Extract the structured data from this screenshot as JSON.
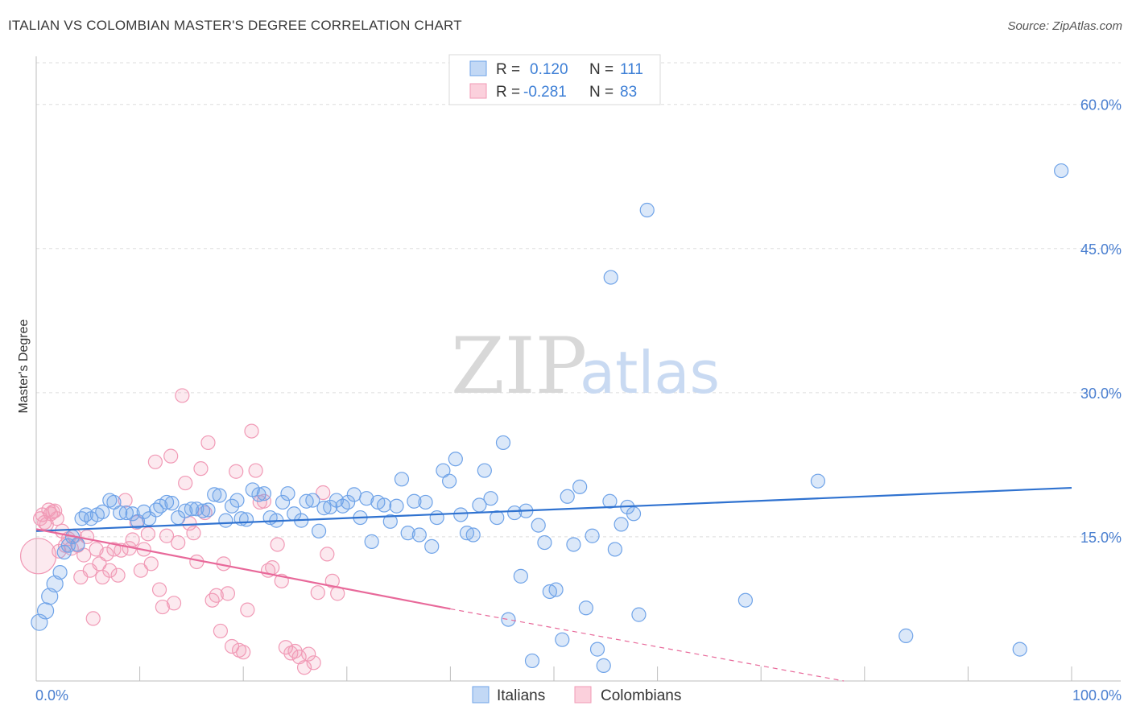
{
  "header": {
    "title": "ITALIAN VS COLOMBIAN MASTER'S DEGREE CORRELATION CHART",
    "source": "Source: ZipAtlas.com"
  },
  "watermark": {
    "zip": "ZIP",
    "atlas": "atlas"
  },
  "stats": [
    {
      "r_label": "R =",
      "r_value": "0.120",
      "n_label": "N =",
      "n_value": "111",
      "color": "#a9c8f0"
    },
    {
      "r_label": "R =",
      "r_value": "-0.281",
      "n_label": "N =",
      "n_value": "83",
      "color": "#f6b8cc"
    }
  ],
  "chart_data": {
    "type": "scatter",
    "title": "ITALIAN VS COLOMBIAN MASTER'S DEGREE CORRELATION CHART",
    "xlabel": "",
    "ylabel": "Master's Degree",
    "xlim": [
      0,
      100
    ],
    "ylim": [
      0,
      65
    ],
    "x_ticks": [
      "0.0%",
      "100.0%"
    ],
    "y_ticks": [
      {
        "value": 15,
        "label": "15.0%"
      },
      {
        "value": 30,
        "label": "30.0%"
      },
      {
        "value": 45,
        "label": "45.0%"
      },
      {
        "value": 60,
        "label": "60.0%"
      }
    ],
    "grid": true,
    "legend_position": "bottom-center",
    "series": [
      {
        "name": "Italians",
        "color": "#6fa3e8",
        "line_color": "#2f72d0",
        "trend": {
          "x": [
            0,
            100
          ],
          "y": [
            15.6,
            20.1
          ]
        },
        "points": [
          [
            0.3,
            6.1
          ],
          [
            0.9,
            7.3
          ],
          [
            1.3,
            8.8
          ],
          [
            1.8,
            10.1
          ],
          [
            2.3,
            11.3
          ],
          [
            2.7,
            13.4
          ],
          [
            3.1,
            14.1
          ],
          [
            3.5,
            15.0
          ],
          [
            4.0,
            14.2
          ],
          [
            4.4,
            16.9
          ],
          [
            4.8,
            17.3
          ],
          [
            5.3,
            16.9
          ],
          [
            5.9,
            17.3
          ],
          [
            6.4,
            17.6
          ],
          [
            7.1,
            18.8
          ],
          [
            7.5,
            18.6
          ],
          [
            8.1,
            17.5
          ],
          [
            8.7,
            17.5
          ],
          [
            9.3,
            17.4
          ],
          [
            9.8,
            16.6
          ],
          [
            10.4,
            17.6
          ],
          [
            10.9,
            16.9
          ],
          [
            11.6,
            17.8
          ],
          [
            12.0,
            18.2
          ],
          [
            12.6,
            18.6
          ],
          [
            13.1,
            18.5
          ],
          [
            13.7,
            17.0
          ],
          [
            14.4,
            17.7
          ],
          [
            15.0,
            17.9
          ],
          [
            15.5,
            17.9
          ],
          [
            16.1,
            17.7
          ],
          [
            16.6,
            17.8
          ],
          [
            17.2,
            19.4
          ],
          [
            17.7,
            19.3
          ],
          [
            18.3,
            16.7
          ],
          [
            18.9,
            18.2
          ],
          [
            19.4,
            18.8
          ],
          [
            19.8,
            16.9
          ],
          [
            20.3,
            16.8
          ],
          [
            20.9,
            19.9
          ],
          [
            21.5,
            19.4
          ],
          [
            22.0,
            19.5
          ],
          [
            22.6,
            17.0
          ],
          [
            23.2,
            16.7
          ],
          [
            23.8,
            18.6
          ],
          [
            24.3,
            19.5
          ],
          [
            24.9,
            17.4
          ],
          [
            25.6,
            16.7
          ],
          [
            26.1,
            18.7
          ],
          [
            26.7,
            18.8
          ],
          [
            27.3,
            15.6
          ],
          [
            27.8,
            18.0
          ],
          [
            28.4,
            18.1
          ],
          [
            29.0,
            18.8
          ],
          [
            29.6,
            18.2
          ],
          [
            30.1,
            18.6
          ],
          [
            30.7,
            19.4
          ],
          [
            31.3,
            17.0
          ],
          [
            31.9,
            19.0
          ],
          [
            32.4,
            14.5
          ],
          [
            33.0,
            18.6
          ],
          [
            33.6,
            18.3
          ],
          [
            34.2,
            16.6
          ],
          [
            34.8,
            18.2
          ],
          [
            35.3,
            21.0
          ],
          [
            35.9,
            15.4
          ],
          [
            36.5,
            18.7
          ],
          [
            37.0,
            15.2
          ],
          [
            37.6,
            18.6
          ],
          [
            38.2,
            14.0
          ],
          [
            38.7,
            17.0
          ],
          [
            39.3,
            21.9
          ],
          [
            39.9,
            20.8
          ],
          [
            40.5,
            23.1
          ],
          [
            41.0,
            17.3
          ],
          [
            41.6,
            15.4
          ],
          [
            42.2,
            15.2
          ],
          [
            42.8,
            18.3
          ],
          [
            43.3,
            21.9
          ],
          [
            43.9,
            19.0
          ],
          [
            44.5,
            17.0
          ],
          [
            45.1,
            24.8
          ],
          [
            45.6,
            6.4
          ],
          [
            46.2,
            17.5
          ],
          [
            46.8,
            10.9
          ],
          [
            47.3,
            17.7
          ],
          [
            47.9,
            2.1
          ],
          [
            48.5,
            16.2
          ],
          [
            49.1,
            14.4
          ],
          [
            49.6,
            9.3
          ],
          [
            50.2,
            9.5
          ],
          [
            50.8,
            4.3
          ],
          [
            51.3,
            19.2
          ],
          [
            51.9,
            14.2
          ],
          [
            52.5,
            20.2
          ],
          [
            53.1,
            7.6
          ],
          [
            53.7,
            15.1
          ],
          [
            54.2,
            3.3
          ],
          [
            54.8,
            1.6
          ],
          [
            55.4,
            18.7
          ],
          [
            55.9,
            13.7
          ],
          [
            56.5,
            16.3
          ],
          [
            57.1,
            18.1
          ],
          [
            57.7,
            17.4
          ],
          [
            58.2,
            6.9
          ],
          [
            55.5,
            42.0
          ],
          [
            59.0,
            49.0
          ],
          [
            68.5,
            8.4
          ],
          [
            75.5,
            20.8
          ],
          [
            84.0,
            4.7
          ],
          [
            95.0,
            3.3
          ],
          [
            99.0,
            53.1
          ]
        ]
      },
      {
        "name": "Colombians",
        "color": "#f19ab6",
        "line_color": "#e8699a",
        "trend": {
          "x": [
            0,
            40
          ],
          "y": [
            15.8,
            7.5
          ]
        },
        "trend_dashed": {
          "x": [
            40,
            78
          ],
          "y": [
            7.5,
            0
          ]
        },
        "points": [
          [
            0.2,
            13.0
          ],
          [
            0.4,
            16.9
          ],
          [
            0.6,
            17.3
          ],
          [
            0.8,
            16.5
          ],
          [
            1.0,
            16.3
          ],
          [
            1.2,
            17.8
          ],
          [
            1.4,
            17.4
          ],
          [
            1.6,
            17.6
          ],
          [
            1.8,
            17.7
          ],
          [
            2.0,
            16.9
          ],
          [
            2.2,
            13.5
          ],
          [
            2.5,
            15.6
          ],
          [
            2.8,
            14.1
          ],
          [
            3.1,
            14.8
          ],
          [
            3.4,
            13.8
          ],
          [
            3.7,
            15.1
          ],
          [
            4.0,
            14.1
          ],
          [
            4.3,
            10.8
          ],
          [
            4.6,
            13.1
          ],
          [
            4.9,
            15.0
          ],
          [
            5.2,
            11.5
          ],
          [
            5.5,
            6.5
          ],
          [
            5.8,
            13.7
          ],
          [
            6.1,
            12.2
          ],
          [
            6.4,
            10.8
          ],
          [
            6.8,
            13.2
          ],
          [
            7.1,
            11.5
          ],
          [
            7.5,
            13.7
          ],
          [
            7.9,
            11.0
          ],
          [
            8.2,
            13.6
          ],
          [
            8.6,
            18.8
          ],
          [
            9.0,
            13.8
          ],
          [
            9.3,
            14.7
          ],
          [
            9.7,
            16.5
          ],
          [
            10.1,
            11.5
          ],
          [
            10.4,
            13.7
          ],
          [
            10.8,
            15.3
          ],
          [
            11.1,
            12.2
          ],
          [
            11.5,
            22.8
          ],
          [
            11.9,
            9.5
          ],
          [
            12.2,
            7.7
          ],
          [
            12.6,
            15.1
          ],
          [
            13.0,
            23.4
          ],
          [
            13.3,
            8.1
          ],
          [
            13.7,
            14.4
          ],
          [
            14.1,
            29.7
          ],
          [
            14.4,
            20.6
          ],
          [
            14.8,
            16.4
          ],
          [
            15.2,
            15.4
          ],
          [
            15.5,
            12.4
          ],
          [
            15.9,
            22.1
          ],
          [
            16.3,
            17.5
          ],
          [
            16.6,
            24.8
          ],
          [
            17.0,
            8.4
          ],
          [
            17.4,
            8.9
          ],
          [
            17.8,
            5.2
          ],
          [
            18.1,
            12.2
          ],
          [
            18.5,
            9.1
          ],
          [
            18.9,
            3.6
          ],
          [
            19.3,
            21.8
          ],
          [
            19.6,
            3.2
          ],
          [
            20.0,
            3.0
          ],
          [
            20.4,
            7.4
          ],
          [
            20.8,
            26.0
          ],
          [
            21.2,
            21.9
          ],
          [
            21.6,
            18.6
          ],
          [
            22.0,
            18.7
          ],
          [
            22.4,
            11.5
          ],
          [
            22.8,
            11.8
          ],
          [
            23.3,
            14.2
          ],
          [
            23.7,
            10.4
          ],
          [
            24.1,
            3.5
          ],
          [
            24.6,
            2.9
          ],
          [
            25.0,
            3.1
          ],
          [
            25.4,
            2.5
          ],
          [
            25.9,
            1.4
          ],
          [
            26.3,
            2.8
          ],
          [
            26.8,
            1.9
          ],
          [
            27.2,
            9.2
          ],
          [
            27.7,
            19.6
          ],
          [
            28.1,
            13.2
          ],
          [
            28.6,
            10.4
          ],
          [
            29.1,
            9.1
          ]
        ]
      }
    ]
  },
  "legend": {
    "italians": "Italians",
    "colombians": "Colombians"
  }
}
